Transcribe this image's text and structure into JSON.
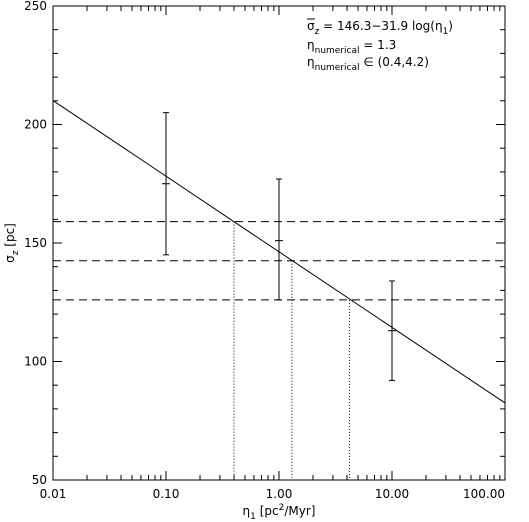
{
  "chart_data": {
    "type": "line",
    "xscale": "log",
    "xlim": [
      0.01,
      100.0
    ],
    "ylim": [
      50,
      250
    ],
    "xlabel": {
      "prefix": "η",
      "sub": "1",
      "unit_open": " [pc",
      "sup": "2",
      "unit_close": "/Myr]"
    },
    "ylabel": {
      "prefix": "σ",
      "sub": "z",
      "unit": " [pc]"
    },
    "x_ticks": [
      {
        "value": 0.01,
        "label": "0.01"
      },
      {
        "value": 0.1,
        "label": "0.10"
      },
      {
        "value": 1.0,
        "label": "1.00"
      },
      {
        "value": 10.0,
        "label": "10.00"
      },
      {
        "value": 100.0,
        "label": "100.00"
      }
    ],
    "y_ticks": [
      {
        "value": 50,
        "label": "50"
      },
      {
        "value": 100,
        "label": "100"
      },
      {
        "value": 150,
        "label": "150"
      },
      {
        "value": 200,
        "label": "200"
      },
      {
        "value": 250,
        "label": "250"
      }
    ],
    "fit": {
      "intercept": 146.3,
      "slope": -31.9,
      "x_range": [
        0.01,
        100.0
      ]
    },
    "data_points": [
      {
        "x": 0.1,
        "y": 175,
        "ylow": 145,
        "yhigh": 205
      },
      {
        "x": 1.0,
        "y": 151,
        "ylow": 126,
        "yhigh": 177
      },
      {
        "x": 10.0,
        "y": 113,
        "ylow": 92,
        "yhigh": 134
      }
    ],
    "h_dashed_lines": [
      159,
      142.5,
      126
    ],
    "v_dotted_lines": [
      {
        "x": 0.4,
        "y": 159
      },
      {
        "x": 1.3,
        "y": 142.5
      },
      {
        "x": 4.2,
        "y": 126
      }
    ],
    "annotations": [
      {
        "sym": "σ",
        "sub": "z",
        "text": " = 146.3−31.9 log(η",
        "sub2": "1",
        "tail": ")"
      },
      {
        "sym": "η",
        "sub": "numerical",
        "text": " = 1.3"
      },
      {
        "sym": "η",
        "sub": "numerical",
        "text": " ∈ (0.4,4.2)"
      }
    ]
  }
}
